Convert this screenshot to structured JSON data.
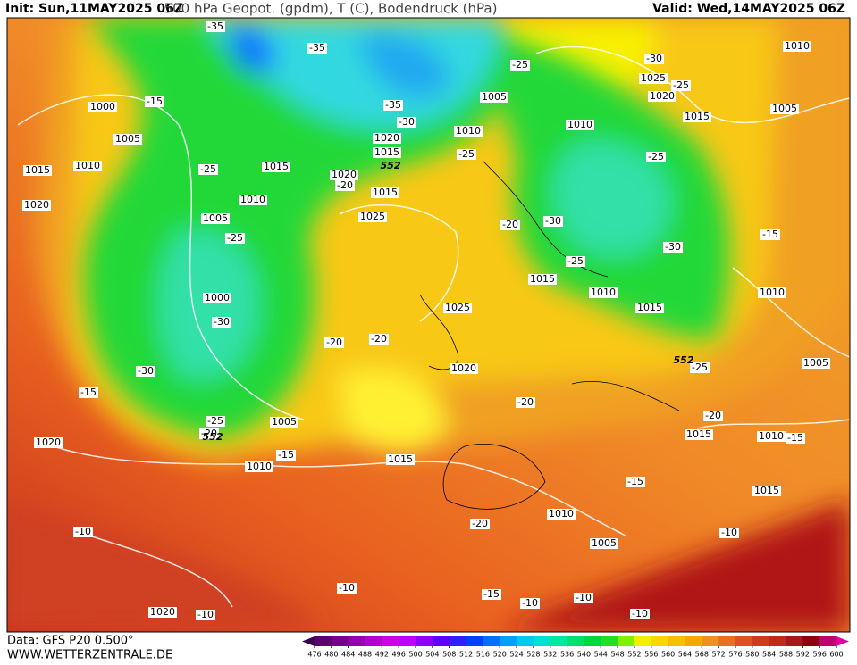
{
  "header": {
    "init": "Init: Sun,11MAY2025 06Z",
    "title": "500 hPa Geopot. (gpdm), T (C), Bodendruck (hPa)",
    "valid": "Valid: Wed,14MAY2025 06Z"
  },
  "footer": {
    "data": "Data: GFS P20 0.500°",
    "site": "WWW.WETTERZENTRALE.DE"
  },
  "legend": {
    "values": [
      476,
      480,
      484,
      488,
      492,
      496,
      500,
      504,
      508,
      512,
      516,
      520,
      524,
      528,
      532,
      536,
      540,
      544,
      548,
      552,
      556,
      560,
      564,
      568,
      572,
      576,
      580,
      584,
      588,
      592,
      596,
      600
    ],
    "colors": [
      "#3a0050",
      "#5a0070",
      "#780090",
      "#9600b0",
      "#b400d0",
      "#d000e8",
      "#c000ff",
      "#9000ff",
      "#6000ff",
      "#3020ff",
      "#0040ff",
      "#0070ff",
      "#00a0ff",
      "#00c8f0",
      "#00e0d0",
      "#00e8a0",
      "#00e070",
      "#00d840",
      "#20e020",
      "#80f000",
      "#f0f000",
      "#f8d800",
      "#f8c000",
      "#f8a800",
      "#f09020",
      "#e87020",
      "#e05020",
      "#d03820",
      "#c02820",
      "#a81818",
      "#900010",
      "#c00070",
      "#e000a0"
    ]
  },
  "map": {
    "pressure_labels": [
      1010,
      1025,
      1020,
      1015,
      1005,
      1000,
      1005,
      1015,
      1010,
      1020,
      1005,
      1010,
      1010,
      1020,
      1015,
      1015,
      1020,
      1015,
      1010,
      1005,
      1025,
      1000,
      1025,
      1015,
      1010,
      1015,
      1010,
      1020,
      1005,
      1005,
      1010,
      1015,
      1015,
      1010,
      1020,
      1010,
      1005,
      1015,
      1020
    ],
    "temperature_labels": [
      -35,
      -35,
      -25,
      -30,
      -25,
      -15,
      -35,
      -30,
      -25,
      -25,
      -20,
      -25,
      -20,
      -30,
      -25,
      -15,
      -30,
      -25,
      -30,
      -20,
      -20,
      -30,
      -15,
      -25,
      -20,
      -25,
      -20,
      -20,
      -15,
      -15,
      -15,
      -20,
      -10,
      -10,
      -10,
      -15,
      -10,
      -10,
      -10,
      -10
    ],
    "geopotential_labels": [
      552,
      552,
      552
    ]
  }
}
